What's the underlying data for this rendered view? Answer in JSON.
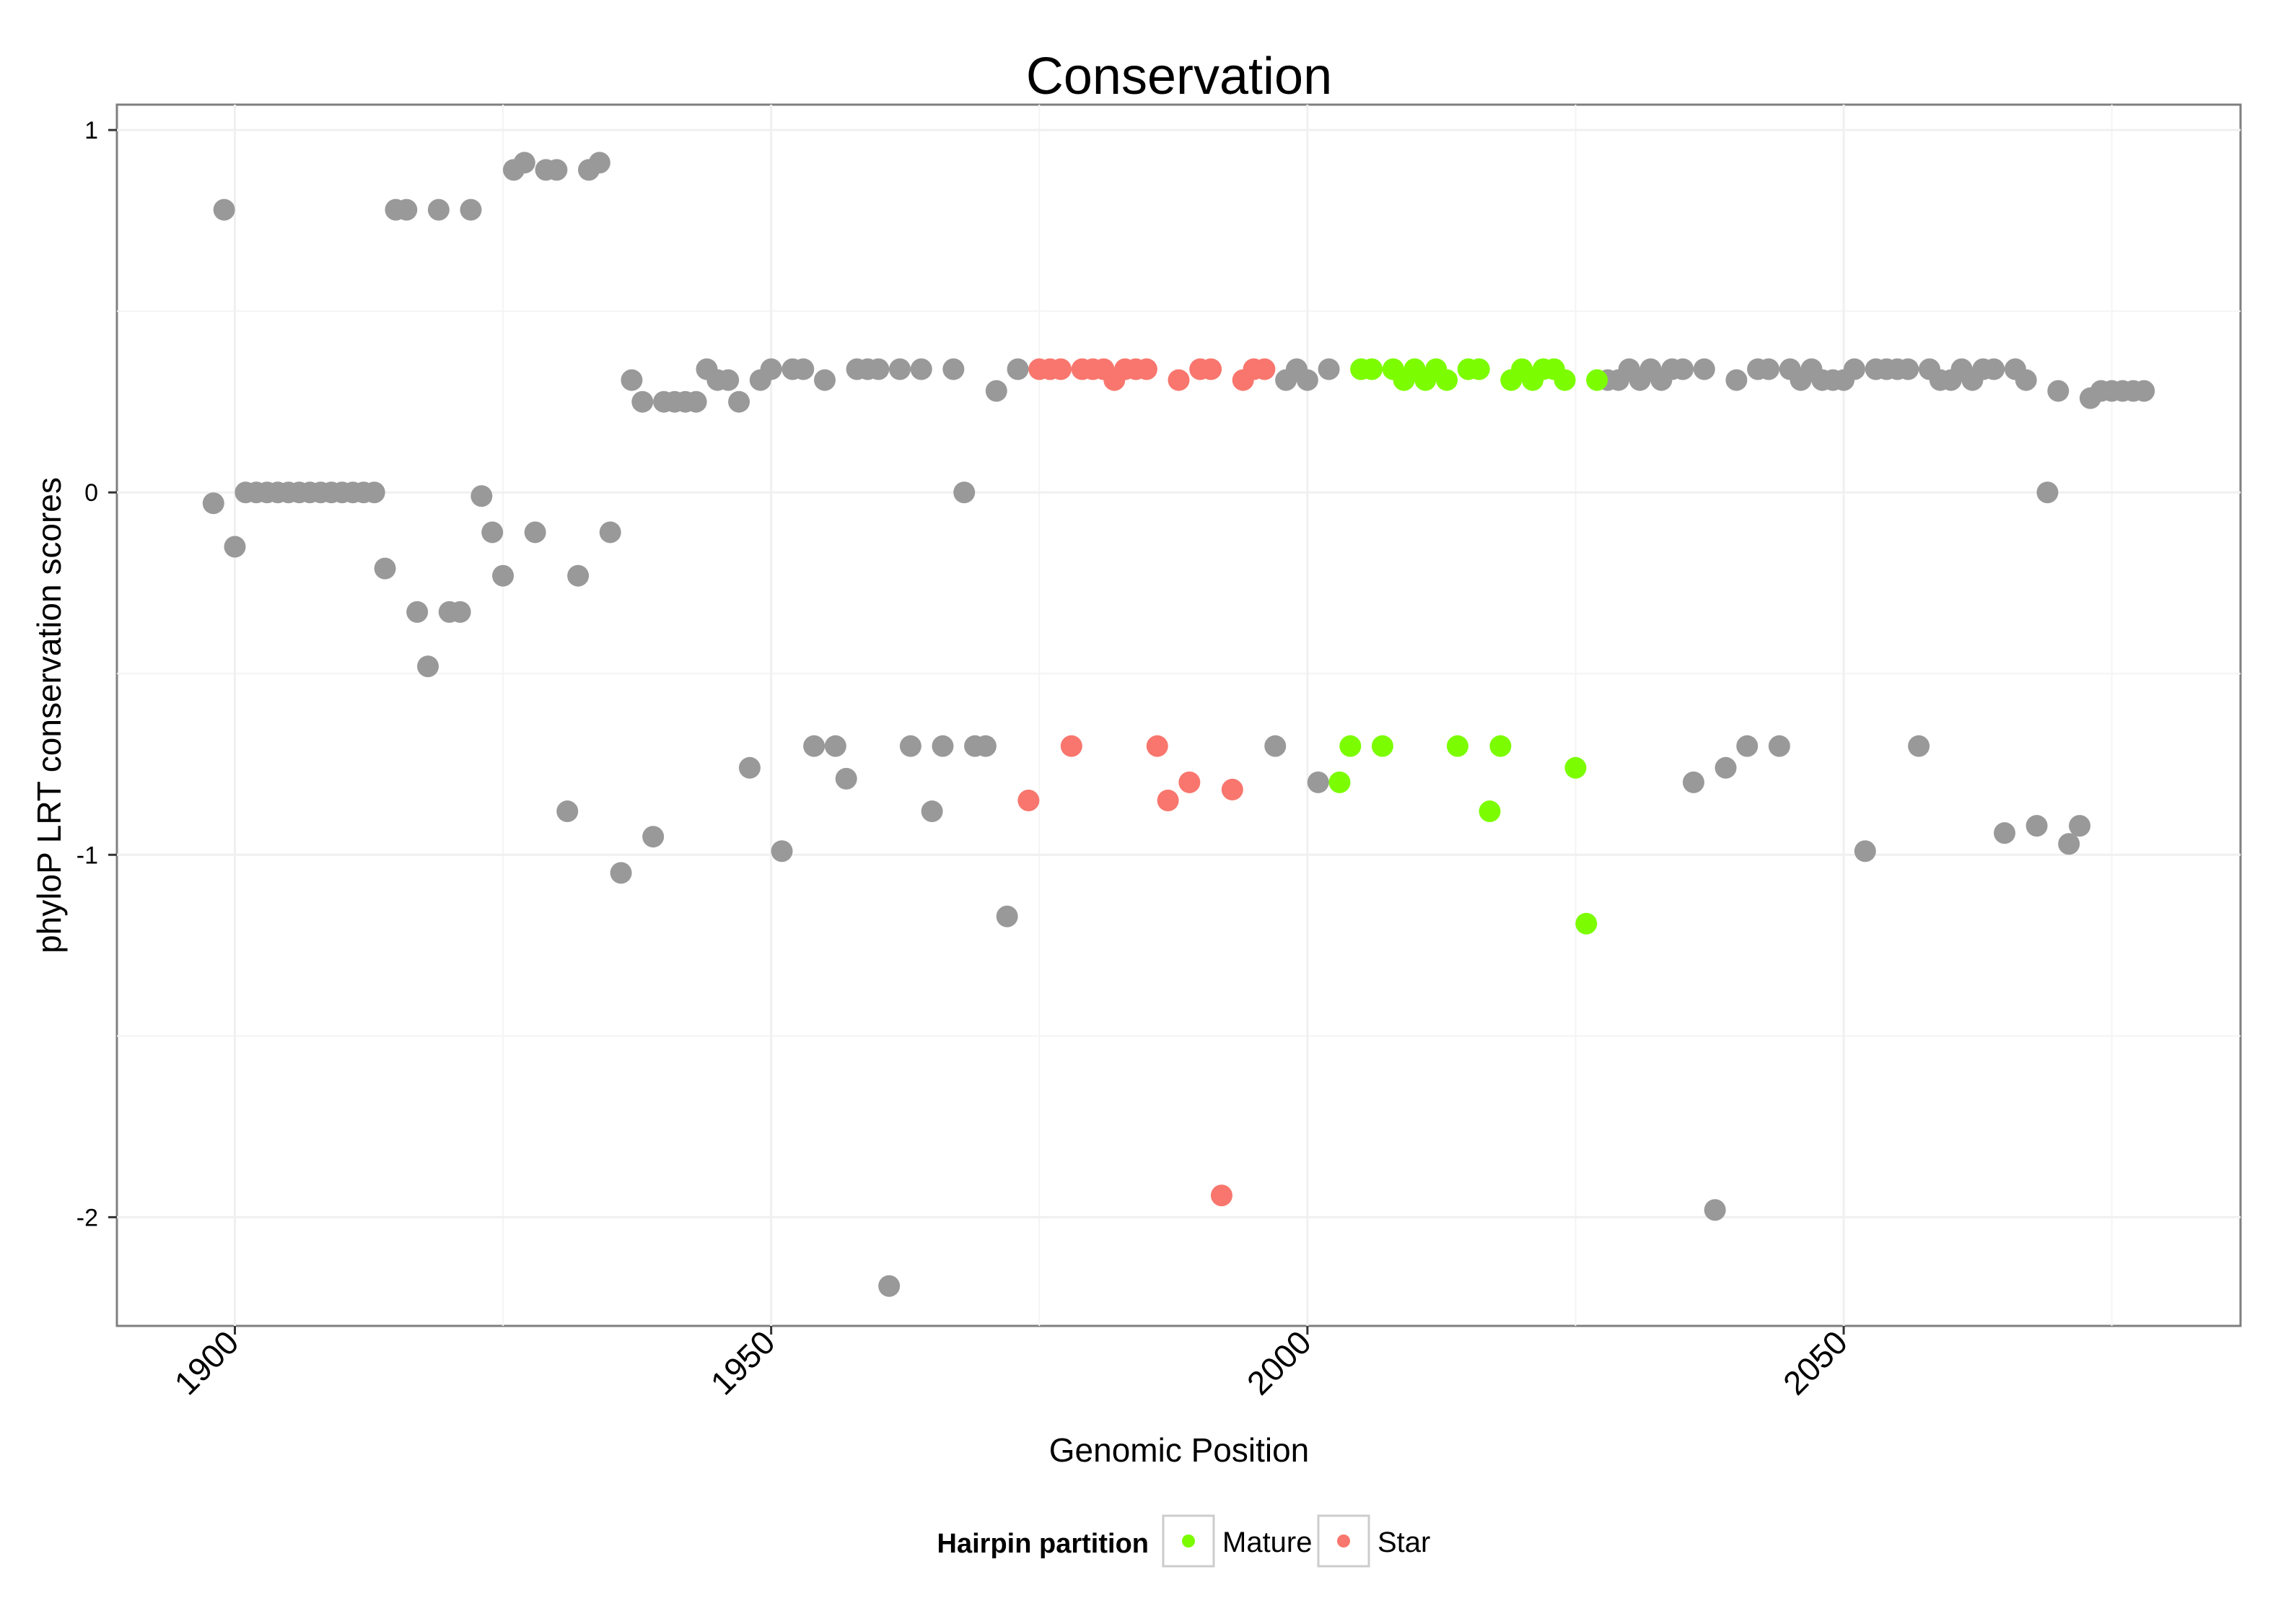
{
  "chart_data": {
    "type": "scatter",
    "title": "Conservation",
    "xlabel": "Genomic Position",
    "ylabel": "phyloP LRT conservation scores",
    "xlim": [
      1889,
      2087
    ],
    "ylim": [
      -2.3,
      1.07
    ],
    "xticks": [
      1900,
      1950,
      2000,
      2050
    ],
    "xtick_labels": [
      "1900",
      "1950",
      "2000",
      "2050"
    ],
    "yticks": [
      1,
      0,
      -1,
      -2
    ],
    "ytick_labels": [
      "1",
      "0",
      "-1",
      "-2"
    ],
    "grid": true,
    "legend": {
      "title": "Hairpin partition",
      "position": "bottom",
      "entries": [
        {
          "label": "Mature",
          "color": "#7CFC00"
        },
        {
          "label": "Star",
          "color": "#F8766D"
        }
      ]
    },
    "colors": {
      "other": "#999999",
      "Mature": "#7CFC00",
      "Star": "#F8766D"
    },
    "series": [
      {
        "name": "other",
        "points": [
          [
            1898,
            -0.03
          ],
          [
            1899,
            0.78
          ],
          [
            1900,
            -0.15
          ],
          [
            1901,
            0
          ],
          [
            1902,
            0
          ],
          [
            1903,
            0
          ],
          [
            1904,
            0
          ],
          [
            1905,
            0
          ],
          [
            1906,
            0
          ],
          [
            1907,
            0
          ],
          [
            1908,
            0
          ],
          [
            1909,
            0
          ],
          [
            1910,
            0
          ],
          [
            1911,
            0
          ],
          [
            1912,
            0
          ],
          [
            1913,
            0
          ],
          [
            1914,
            -0.21
          ],
          [
            1915,
            0.78
          ],
          [
            1916,
            0.78
          ],
          [
            1917,
            -0.33
          ],
          [
            1918,
            -0.48
          ],
          [
            1919,
            0.78
          ],
          [
            1920,
            -0.33
          ],
          [
            1921,
            -0.33
          ],
          [
            1922,
            0.78
          ],
          [
            1923,
            -0.01
          ],
          [
            1924,
            -0.11
          ],
          [
            1925,
            -0.23
          ],
          [
            1926,
            0.89
          ],
          [
            1927,
            0.91
          ],
          [
            1928,
            -0.11
          ],
          [
            1929,
            0.89
          ],
          [
            1930,
            0.89
          ],
          [
            1931,
            -0.88
          ],
          [
            1932,
            -0.23
          ],
          [
            1933,
            0.89
          ],
          [
            1934,
            0.91
          ],
          [
            1935,
            -0.11
          ],
          [
            1936,
            -1.05
          ],
          [
            1937,
            0.31
          ],
          [
            1938,
            0.25
          ],
          [
            1939,
            -0.95
          ],
          [
            1940,
            0.25
          ],
          [
            1941,
            0.25
          ],
          [
            1942,
            0.25
          ],
          [
            1943,
            0.25
          ],
          [
            1944,
            0.34
          ],
          [
            1945,
            0.31
          ],
          [
            1946,
            0.31
          ],
          [
            1947,
            0.25
          ],
          [
            1948,
            -0.76
          ],
          [
            1949,
            0.31
          ],
          [
            1950,
            0.34
          ],
          [
            1951,
            -0.99
          ],
          [
            1952,
            0.34
          ],
          [
            1953,
            0.34
          ],
          [
            1954,
            -0.7
          ],
          [
            1955,
            0.31
          ],
          [
            1956,
            -0.7
          ],
          [
            1957,
            -0.79
          ],
          [
            1958,
            0.34
          ],
          [
            1959,
            0.34
          ],
          [
            1960,
            0.34
          ],
          [
            1961,
            -2.19
          ],
          [
            1962,
            0.34
          ],
          [
            1963,
            -0.7
          ],
          [
            1964,
            0.34
          ],
          [
            1965,
            -0.88
          ],
          [
            1966,
            -0.7
          ],
          [
            1967,
            0.34
          ],
          [
            1968,
            0
          ],
          [
            1969,
            -0.7
          ],
          [
            1970,
            -0.7
          ],
          [
            1971,
            0.28
          ],
          [
            1972,
            -1.17
          ],
          [
            1973,
            0.34
          ],
          [
            1997,
            -0.7
          ],
          [
            1998,
            0.31
          ],
          [
            1999,
            0.34
          ],
          [
            2000,
            0.31
          ],
          [
            2001,
            -0.8
          ],
          [
            2002,
            0.34
          ],
          [
            2028,
            0.31
          ],
          [
            2029,
            0.31
          ],
          [
            2030,
            0.34
          ],
          [
            2031,
            0.31
          ],
          [
            2032,
            0.34
          ],
          [
            2033,
            0.31
          ],
          [
            2034,
            0.34
          ],
          [
            2035,
            0.34
          ],
          [
            2036,
            -0.8
          ],
          [
            2037,
            0.34
          ],
          [
            2038,
            -1.98
          ],
          [
            2039,
            -0.76
          ],
          [
            2040,
            0.31
          ],
          [
            2041,
            -0.7
          ],
          [
            2042,
            0.34
          ],
          [
            2043,
            0.34
          ],
          [
            2044,
            -0.7
          ],
          [
            2045,
            0.34
          ],
          [
            2046,
            0.31
          ],
          [
            2047,
            0.34
          ],
          [
            2048,
            0.31
          ],
          [
            2049,
            0.31
          ],
          [
            2050,
            0.31
          ],
          [
            2051,
            0.34
          ],
          [
            2052,
            -0.99
          ],
          [
            2053,
            0.34
          ],
          [
            2054,
            0.34
          ],
          [
            2055,
            0.34
          ],
          [
            2056,
            0.34
          ],
          [
            2057,
            -0.7
          ],
          [
            2058,
            0.34
          ],
          [
            2059,
            0.31
          ],
          [
            2060,
            0.31
          ],
          [
            2061,
            0.34
          ],
          [
            2062,
            0.31
          ],
          [
            2063,
            0.34
          ],
          [
            2064,
            0.34
          ],
          [
            2065,
            -0.94
          ],
          [
            2066,
            0.34
          ],
          [
            2067,
            0.31
          ],
          [
            2068,
            -0.92
          ],
          [
            2069,
            0
          ],
          [
            2070,
            0.28
          ],
          [
            2071,
            -0.97
          ],
          [
            2072,
            -0.92
          ],
          [
            2073,
            0.26
          ],
          [
            2074,
            0.28
          ],
          [
            2075,
            0.28
          ],
          [
            2076,
            0.28
          ],
          [
            2077,
            0.28
          ],
          [
            2078,
            0.28
          ]
        ]
      },
      {
        "name": "Star",
        "points": [
          [
            1974,
            -0.85
          ],
          [
            1975,
            0.34
          ],
          [
            1976,
            0.34
          ],
          [
            1977,
            0.34
          ],
          [
            1978,
            -0.7
          ],
          [
            1979,
            0.34
          ],
          [
            1980,
            0.34
          ],
          [
            1981,
            0.34
          ],
          [
            1982,
            0.31
          ],
          [
            1983,
            0.34
          ],
          [
            1984,
            0.34
          ],
          [
            1985,
            0.34
          ],
          [
            1986,
            -0.7
          ],
          [
            1987,
            -0.85
          ],
          [
            1988,
            0.31
          ],
          [
            1989,
            -0.8
          ],
          [
            1990,
            0.34
          ],
          [
            1991,
            0.34
          ],
          [
            1992,
            -1.94
          ],
          [
            1993,
            -0.82
          ],
          [
            1994,
            0.31
          ],
          [
            1995,
            0.34
          ],
          [
            1996,
            0.34
          ]
        ]
      },
      {
        "name": "Mature",
        "points": [
          [
            2003,
            -0.8
          ],
          [
            2004,
            -0.7
          ],
          [
            2005,
            0.34
          ],
          [
            2006,
            0.34
          ],
          [
            2007,
            -0.7
          ],
          [
            2008,
            0.34
          ],
          [
            2009,
            0.31
          ],
          [
            2010,
            0.34
          ],
          [
            2011,
            0.31
          ],
          [
            2012,
            0.34
          ],
          [
            2013,
            0.31
          ],
          [
            2014,
            -0.7
          ],
          [
            2015,
            0.34
          ],
          [
            2016,
            0.34
          ],
          [
            2017,
            -0.88
          ],
          [
            2018,
            -0.7
          ],
          [
            2019,
            0.31
          ],
          [
            2020,
            0.34
          ],
          [
            2021,
            0.31
          ],
          [
            2022,
            0.34
          ],
          [
            2023,
            0.34
          ],
          [
            2024,
            0.31
          ],
          [
            2025,
            -0.76
          ],
          [
            2026,
            -1.19
          ],
          [
            2027,
            0.31
          ]
        ]
      }
    ]
  }
}
